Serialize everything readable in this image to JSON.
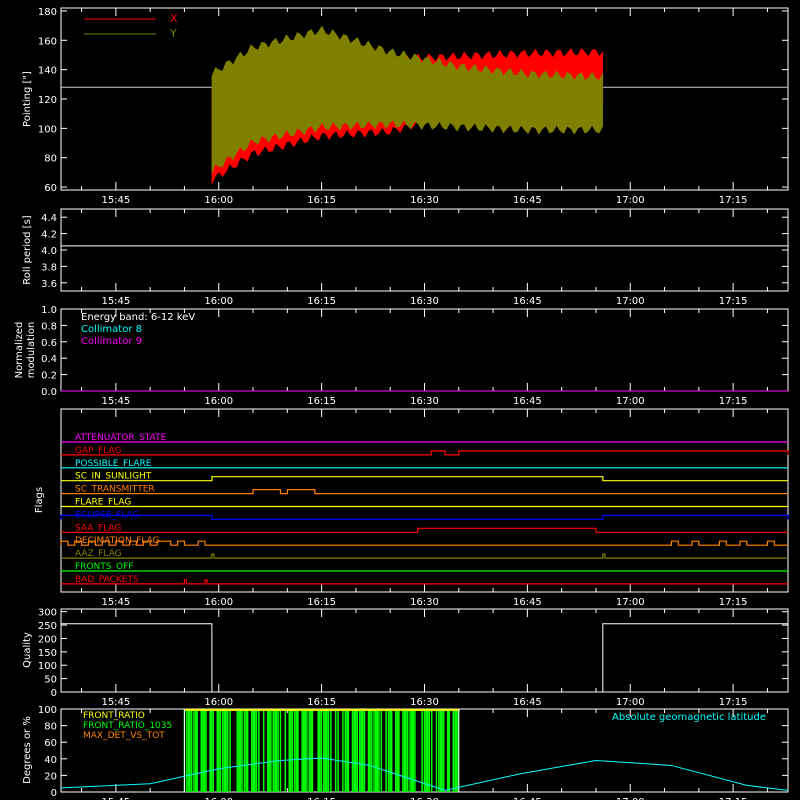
{
  "colors": {
    "frame": "#ffffff",
    "x": "#ff0000",
    "y": "#808000",
    "cyan": "#00ffff",
    "magenta": "#ff00ff",
    "green": "#00ff00",
    "orange": "#ff8000",
    "yellow": "#ffff00",
    "blue": "#0000ff"
  },
  "time_ticks": [
    "15:45",
    "16:00",
    "16:15",
    "16:30",
    "16:45",
    "17:00",
    "17:15"
  ],
  "chart_data": [
    {
      "id": "pointing",
      "type": "area",
      "ylabel": "Pointing [\"]",
      "ylim": [
        58,
        182
      ],
      "yticks": [
        60,
        80,
        100,
        120,
        140,
        160,
        180
      ],
      "reference_line": 128,
      "data_range": [
        "15:59",
        "16:56"
      ],
      "legend": {
        "placement": "top-left",
        "entries": [
          {
            "label": "X",
            "color": "#ff0000"
          },
          {
            "label": "Y",
            "color": "#808000"
          }
        ]
      },
      "series": [
        {
          "name": "X",
          "color": "#ff0000",
          "x": [
            "15:59",
            "16:05",
            "16:15",
            "16:25",
            "16:35",
            "16:45",
            "16:56"
          ],
          "upper": [
            135,
            150,
            158,
            150,
            152,
            154,
            155
          ],
          "lower": [
            62,
            80,
            92,
            95,
            108,
            112,
            115
          ]
        },
        {
          "name": "Y",
          "color": "#808000",
          "x": [
            "15:59",
            "16:05",
            "16:15",
            "16:25",
            "16:35",
            "16:45",
            "16:56"
          ],
          "upper": [
            140,
            158,
            170,
            155,
            145,
            140,
            138
          ],
          "lower": [
            68,
            88,
            98,
            100,
            98,
            96,
            96
          ]
        }
      ]
    },
    {
      "id": "roll",
      "type": "line",
      "ylabel": "Roll period [s]",
      "ylim": [
        3.5,
        4.5
      ],
      "yticks": [
        3.6,
        3.8,
        4.0,
        4.2,
        4.4
      ],
      "ytick_labels": [
        "3.6",
        "3.8",
        "4.0",
        "4.2",
        "4.4"
      ],
      "series": [
        {
          "x": [
            "15:37",
            "17:23"
          ],
          "y": [
            4.05,
            4.05
          ],
          "color": "#ffffff"
        }
      ]
    },
    {
      "id": "modulation",
      "type": "line",
      "ylabel": [
        "Normalized",
        "modulation"
      ],
      "ylim": [
        0,
        1
      ],
      "yticks": [
        0,
        0.2,
        0.4,
        0.6,
        0.8,
        1.0
      ],
      "ytick_labels": [
        "0.0",
        "0.2",
        "0.4",
        "0.6",
        "0.8",
        "1.0"
      ],
      "annotations": [
        {
          "text": "Energy band: 6-12 keV",
          "color": "#ffffff"
        },
        {
          "text": "Collimator 8",
          "color": "#00ffff"
        },
        {
          "text": "Collimator 9",
          "color": "#ff00ff"
        }
      ],
      "series": [
        {
          "x": [
            "15:37",
            "17:23"
          ],
          "y": [
            0,
            0
          ],
          "color": "#ff00ff"
        }
      ]
    },
    {
      "id": "flags",
      "type": "line",
      "ylabel": "Flags",
      "flags": [
        {
          "label": "ATTENUATOR_STATE",
          "color": "#ff00ff",
          "hi": []
        },
        {
          "label": "GAP_FLAG",
          "color": "#ff0000",
          "hi": [
            [
              "16:31",
              "16:33"
            ],
            [
              "16:35",
              "17:23"
            ]
          ]
        },
        {
          "label": "POSSIBLE_FLARE",
          "color": "#00ffff",
          "hi": []
        },
        {
          "label": "SC_IN_SUNLIGHT",
          "color": "#ffff00",
          "hi": [
            [
              "15:59",
              "16:56"
            ]
          ]
        },
        {
          "label": "SC_TRANSMITTER",
          "color": "#ff8000",
          "hi": [
            [
              "16:05",
              "16:09"
            ],
            [
              "16:10",
              "16:14"
            ]
          ]
        },
        {
          "label": "FLARE_FLAG",
          "color": "#ffff00",
          "hi": []
        },
        {
          "label": "ECLIPSE_FLAG",
          "color": "#0000ff",
          "hi": [
            [
              "15:37",
              "15:59"
            ],
            [
              "16:56",
              "17:23"
            ]
          ]
        },
        {
          "label": "SAA_FLAG",
          "color": "#ff0000",
          "hi": [
            [
              "16:29",
              "16:55"
            ]
          ]
        },
        {
          "label": "DECIMATION_FLAG",
          "color": "#ff8000",
          "hi": [
            [
              "15:37",
              "15:38"
            ],
            [
              "15:39",
              "15:40"
            ],
            [
              "15:41",
              "15:42"
            ],
            [
              "15:43",
              "15:44"
            ],
            [
              "15:45",
              "15:46"
            ],
            [
              "15:47",
              "15:48"
            ],
            [
              "15:49",
              "15:50"
            ],
            [
              "15:51",
              "15:53"
            ],
            [
              "15:54",
              "15:55"
            ],
            [
              "15:57",
              "15:58"
            ],
            [
              "17:06",
              "17:07"
            ],
            [
              "17:09",
              "17:10"
            ],
            [
              "17:13",
              "17:14"
            ],
            [
              "17:16",
              "17:17"
            ],
            [
              "17:20",
              "17:21"
            ]
          ]
        },
        {
          "label": "AAZ_FLAG",
          "color": "#808000",
          "hi": [
            [
              "15:59",
              "15:59.3"
            ],
            [
              "16:56",
              "16:56.3"
            ]
          ]
        },
        {
          "label": "FRONTS_OFF",
          "color": "#00ff00",
          "hi": []
        },
        {
          "label": "BAD_PACKETS",
          "color": "#ff0000",
          "hi": [
            [
              "15:55",
              "15:55.3"
            ],
            [
              "15:58",
              "15:58.3"
            ]
          ]
        }
      ]
    },
    {
      "id": "quality",
      "type": "line",
      "ylabel": "Quality",
      "ylim": [
        0,
        310
      ],
      "yticks": [
        0,
        50,
        100,
        150,
        200,
        250,
        300
      ],
      "series": [
        {
          "color": "#ffffff",
          "x": [
            "15:37",
            "15:59",
            "15:59",
            "16:56",
            "16:56",
            "17:23"
          ],
          "y": [
            255,
            255,
            0,
            0,
            255,
            255
          ]
        }
      ]
    },
    {
      "id": "geo",
      "type": "line",
      "ylabel": "Degrees or %",
      "ylim": [
        0,
        100
      ],
      "yticks": [
        0,
        20,
        40,
        60,
        80,
        100
      ],
      "legend": {
        "placement": "top-left",
        "entries": [
          {
            "label": "FRONT_RATIO",
            "color": "#ffff00"
          },
          {
            "label": "FRONT_RATIO_1035",
            "color": "#00ff00"
          },
          {
            "label": "MAX_DET_VS_TOT",
            "color": "#ff8000"
          }
        ]
      },
      "annotation": {
        "text": "Absolute geomagnetic latitude",
        "color": "#00ffff"
      },
      "front_ratio_range": [
        "15:55",
        "16:35"
      ],
      "series": [
        {
          "name": "Absolute geomagnetic latitude",
          "color": "#00ffff",
          "x": [
            "15:37",
            "15:50",
            "16:00",
            "16:09",
            "16:15",
            "16:22",
            "16:33",
            "16:44",
            "16:55",
            "17:06",
            "17:17",
            "17:23"
          ],
          "y": [
            5,
            10,
            28,
            38,
            41,
            32,
            2,
            22,
            38,
            32,
            8,
            2
          ]
        }
      ]
    }
  ]
}
